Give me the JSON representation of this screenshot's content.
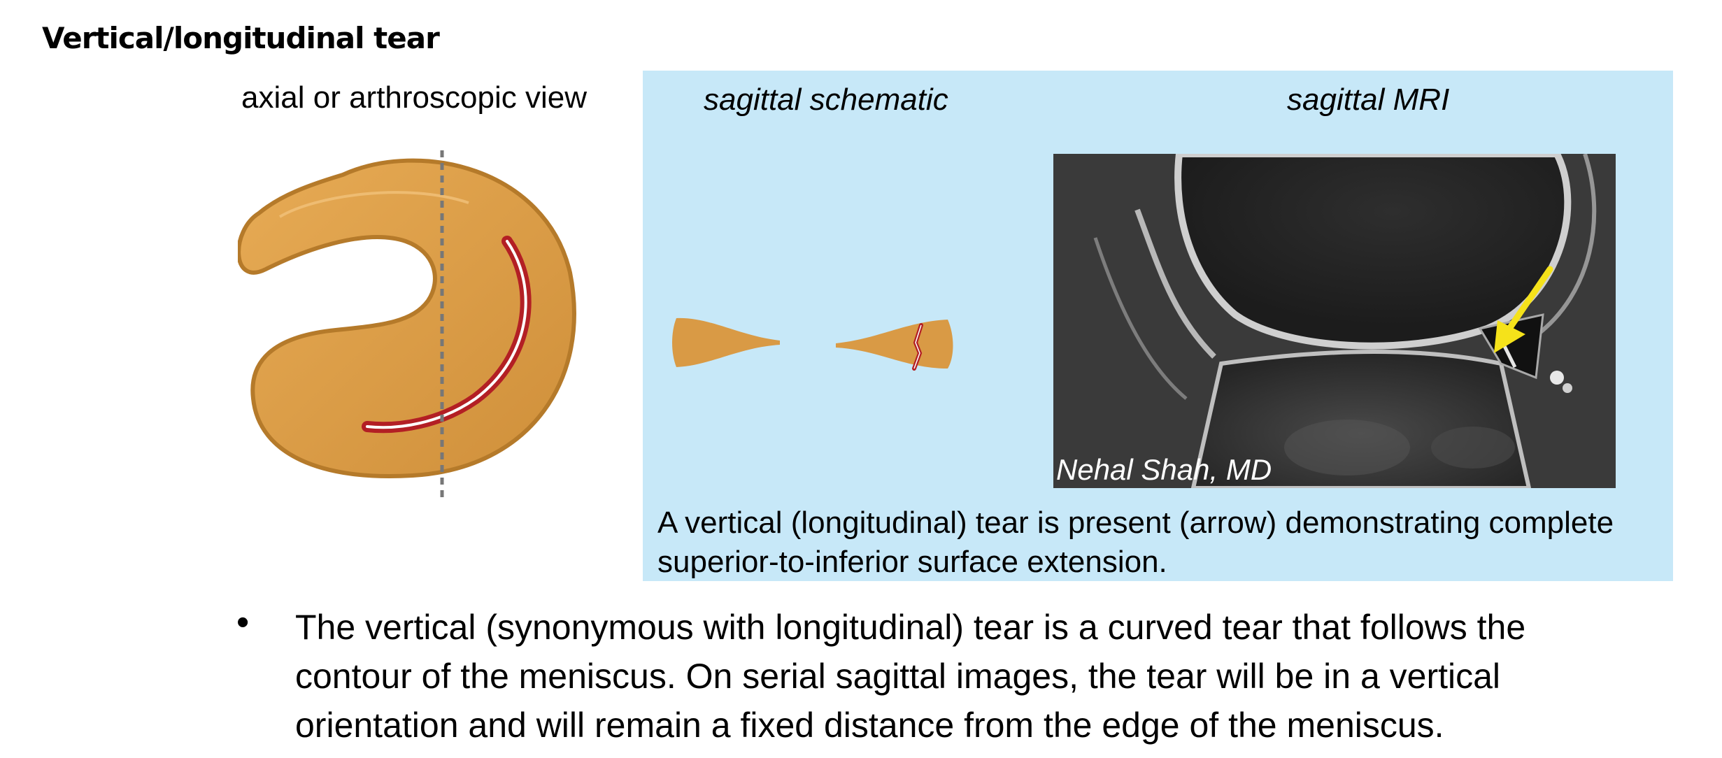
{
  "title": "Vertical/longitudinal tear",
  "labels": {
    "axial": "axial or arthroscopic view",
    "sagittal_schematic": "sagittal schematic",
    "sagittal_mri": "sagittal MRI"
  },
  "mri": {
    "credit": "Nehal Shah, MD"
  },
  "caption": "A vertical (longitudinal) tear is present (arrow) demonstrating complete superior-to-inferior surface extension.",
  "bullet": {
    "marker": "•",
    "text": "The vertical (synonymous with longitudinal) tear is a curved tear that follows the contour of the meniscus. On serial sagittal images, the tear will be in a vertical orientation and will remain a fixed distance from the edge of the meniscus."
  },
  "colors": {
    "meniscus": "#d99a45",
    "meniscus_edge": "#b57a2a",
    "tear": "#b31f24",
    "panel": "#c7e8f8",
    "arrow": "#f5e21a"
  }
}
